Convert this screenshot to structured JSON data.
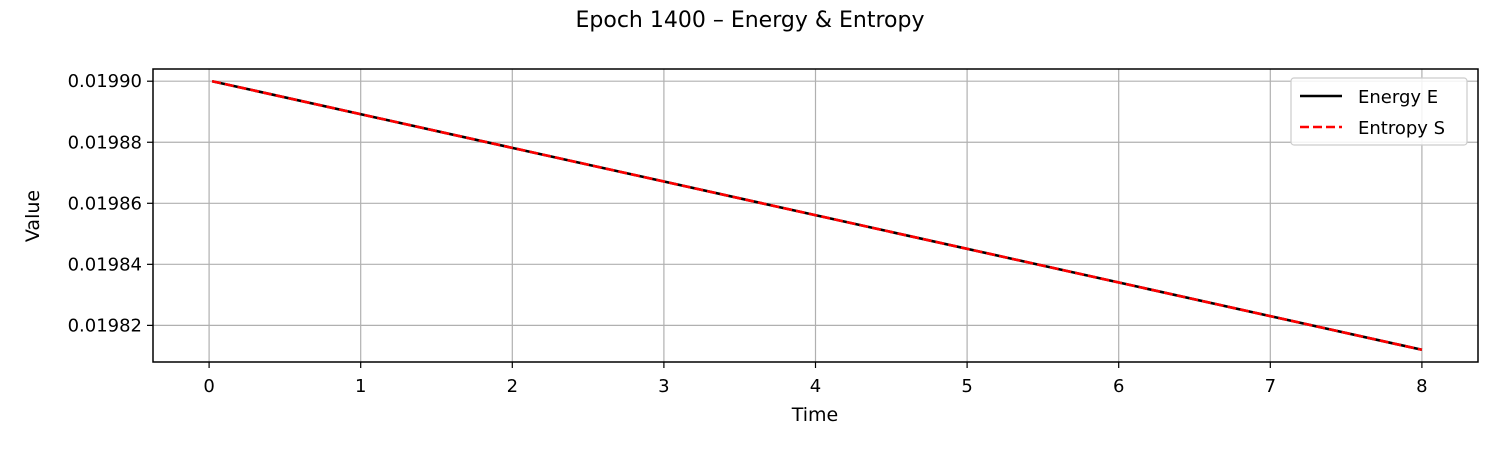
{
  "chart_data": {
    "type": "line",
    "title": "Epoch 1400 – Energy & Entropy",
    "xlabel": "Time",
    "ylabel": "Value",
    "xlim": [
      -0.37,
      8.37
    ],
    "ylim": [
      0.019808,
      0.019904
    ],
    "xticks": [
      0,
      1,
      2,
      3,
      4,
      5,
      6,
      7,
      8
    ],
    "xtick_labels": [
      "0",
      "1",
      "2",
      "3",
      "4",
      "5",
      "6",
      "7",
      "8"
    ],
    "yticks": [
      0.01982,
      0.01984,
      0.01986,
      0.01988,
      0.0199
    ],
    "ytick_labels": [
      "0.01982",
      "0.01984",
      "0.01986",
      "0.01988",
      "0.01990"
    ],
    "grid": true,
    "legend_position": "top-right",
    "series": [
      {
        "name": "Energy E",
        "color": "#000000",
        "style": "solid",
        "x": [
          0.02,
          8.0
        ],
        "y": [
          0.0199,
          0.019812
        ]
      },
      {
        "name": "Entropy S",
        "color": "#ff0000",
        "style": "dashed",
        "x": [
          0.02,
          8.0
        ],
        "y": [
          0.0199,
          0.019812
        ]
      }
    ]
  }
}
